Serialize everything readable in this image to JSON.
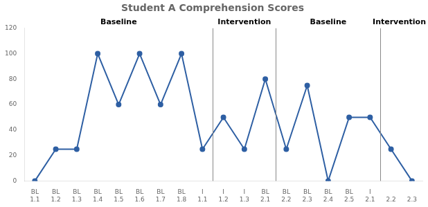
{
  "chart_data": {
    "type": "line",
    "title": "Student A Comprehension Scores",
    "categories": [
      [
        "BL",
        "1.1"
      ],
      [
        "BL",
        "1.2"
      ],
      [
        "BL",
        "1.3"
      ],
      [
        "BL",
        "1.4"
      ],
      [
        "BL",
        "1.5"
      ],
      [
        "BL",
        "1.6"
      ],
      [
        "BL",
        "1.7"
      ],
      [
        "BL",
        "1.8"
      ],
      [
        "I",
        "1.1"
      ],
      [
        "I",
        "1.2"
      ],
      [
        "I",
        "1.3"
      ],
      [
        "BL",
        "2.1"
      ],
      [
        "BL",
        "2.2"
      ],
      [
        "BL",
        "2.3"
      ],
      [
        "BL",
        "2.4"
      ],
      [
        "BL",
        "2.5"
      ],
      [
        "I",
        "2.1"
      ],
      [
        null,
        "2.2"
      ],
      [
        null,
        "2.3"
      ]
    ],
    "values": [
      0,
      25,
      25,
      100,
      60,
      100,
      60,
      100,
      25,
      50,
      25,
      80,
      25,
      75,
      0,
      50,
      50,
      25,
      0
    ],
    "color": "#2E5FA3",
    "marker": "circle",
    "ylim": [
      0,
      120
    ],
    "yticks": [
      0,
      20,
      40,
      60,
      80,
      100,
      120
    ],
    "grid": false,
    "phases": [
      "Baseline",
      "Intervention",
      "Baseline",
      "Intervention"
    ],
    "phase_lines": [
      8.5,
      11.5,
      16.5
    ]
  }
}
